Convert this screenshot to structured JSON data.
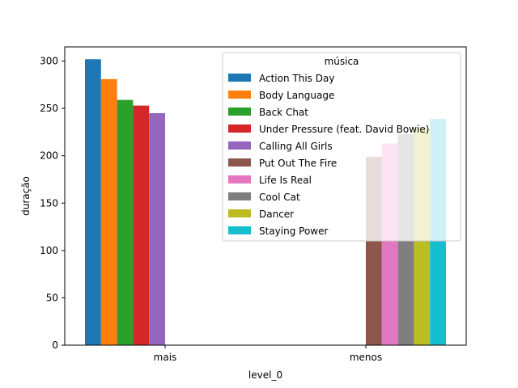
{
  "chart_data": {
    "type": "bar",
    "categories": [
      "mais",
      "menos"
    ],
    "xlabel": "level_0",
    "ylabel": "duração",
    "ylim": [
      0,
      315
    ],
    "yticks": [
      0,
      50,
      100,
      150,
      200,
      250,
      300
    ],
    "grid": false,
    "legend": {
      "title": "música",
      "placement": "upper right"
    },
    "series": [
      {
        "name": "Action This Day",
        "color": "#1f77b4",
        "values": [
          302,
          null
        ]
      },
      {
        "name": "Body Language",
        "color": "#ff7f0e",
        "values": [
          281,
          null
        ]
      },
      {
        "name": "Back Chat",
        "color": "#2ca02c",
        "values": [
          259,
          null
        ]
      },
      {
        "name": "Under Pressure (feat. David Bowie)",
        "color": "#d62728",
        "values": [
          253,
          null
        ]
      },
      {
        "name": "Calling All Girls",
        "color": "#9467bd",
        "values": [
          245,
          null
        ]
      },
      {
        "name": "Put Out The Fire",
        "color": "#8c564b",
        "values": [
          null,
          199
        ]
      },
      {
        "name": "Life Is Real",
        "color": "#e377c2",
        "values": [
          null,
          213
        ]
      },
      {
        "name": "Cool Cat",
        "color": "#7f7f7f",
        "values": [
          null,
          223
        ]
      },
      {
        "name": "Dancer",
        "color": "#bcbd22",
        "values": [
          null,
          229
        ]
      },
      {
        "name": "Staying Power",
        "color": "#17becf",
        "values": [
          null,
          239
        ]
      }
    ]
  }
}
